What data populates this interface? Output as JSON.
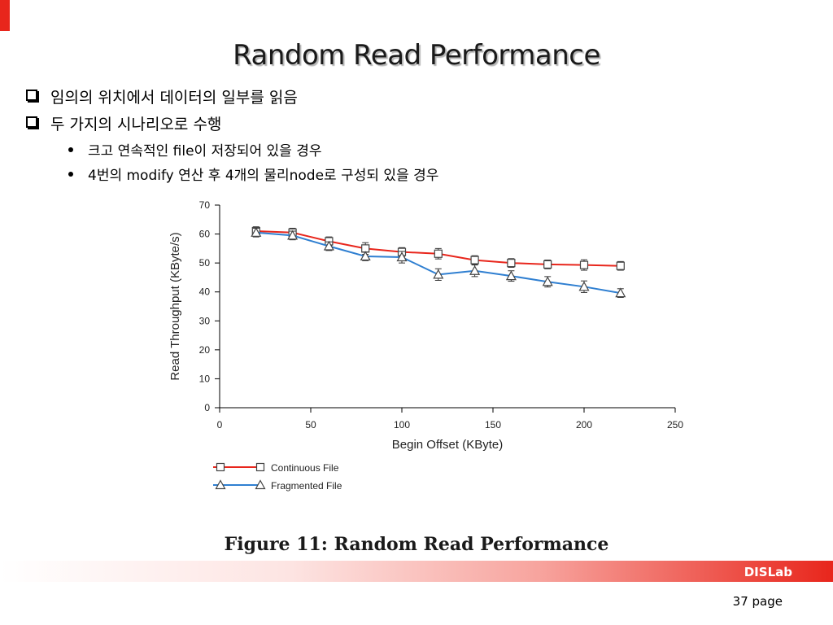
{
  "slide": {
    "title": "Random Read Performance",
    "bullets": [
      "임의의 위치에서 데이터의 일부를 읽음",
      "두 가지의 시나리오로 수행"
    ],
    "sub_bullets": [
      "크고 연속적인 file이 저장되어 있을 경우",
      "4번의 modify 연산 후 4개의 물리node로 구성되 있을 경우"
    ],
    "figure_caption": "Figure 11:  Random Read Performance",
    "footer_lab": "DISLab",
    "page": "37 page",
    "colors": {
      "accent": "#e8261c",
      "series_continuous": "#e8261c",
      "series_fragmented": "#2f7fd1"
    }
  },
  "chart_data": {
    "type": "line",
    "xlabel": "Begin Offset (KByte)",
    "ylabel": "Read Throughput (KByte/s)",
    "xlim": [
      0,
      250
    ],
    "ylim": [
      0,
      70
    ],
    "xticks": [
      0,
      50,
      100,
      150,
      200,
      250
    ],
    "yticks": [
      0,
      10,
      20,
      30,
      40,
      50,
      60,
      70
    ],
    "grid": false,
    "legend": "bottom-left",
    "x": [
      20,
      40,
      60,
      80,
      100,
      120,
      140,
      160,
      180,
      200,
      220
    ],
    "series": [
      {
        "name": "Continuous File",
        "marker": "square",
        "color": "#e8261c",
        "values": [
          61,
          60.5,
          57.5,
          55,
          53.8,
          53.2,
          51,
          50,
          49.5,
          49.3,
          49
        ],
        "errors": [
          1.5,
          1.5,
          1.5,
          2,
          1.5,
          1.8,
          1.5,
          1.5,
          1.5,
          1.8,
          1.5
        ]
      },
      {
        "name": "Fragmented File",
        "marker": "triangle",
        "color": "#2f7fd1",
        "values": [
          60.5,
          59.5,
          55.8,
          52.3,
          52,
          46,
          47.3,
          45.5,
          43.5,
          41.8,
          39.6
        ],
        "errors": [
          1.5,
          1.5,
          1.5,
          1.5,
          2,
          2,
          2,
          1.8,
          1.8,
          2,
          1.5
        ]
      }
    ]
  }
}
